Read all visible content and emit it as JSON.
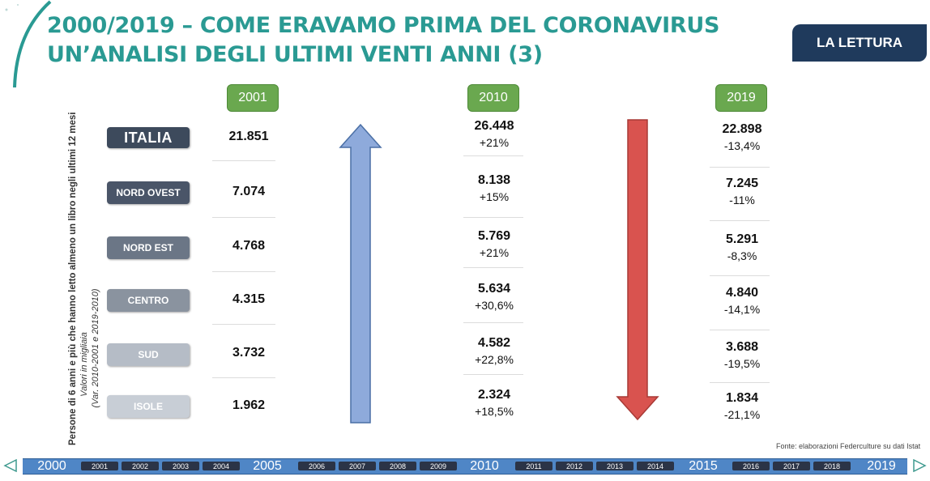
{
  "header": {
    "title_line1": "2000/2019 – COME ERAVAMO  PRIMA DEL CORONAVIRUS",
    "title_line2": "UN’ANALISI DEGLI ULTIMI VENTI ANNI (3)",
    "section_badge": "LA LETTURA"
  },
  "side_label": {
    "line1": "Persone di 6 anni e più che hanno letto almeno un libro negli ultimi 12 mesi",
    "line2": "Valori in  migliaia",
    "line3": "(Var. 2010-2001 e 2019-2010)"
  },
  "years": {
    "y2001": "2001",
    "y2010": "2010",
    "y2019": "2019"
  },
  "regions": [
    {
      "name": "ITALIA",
      "v2001": "21.851",
      "v2010": "26.448",
      "p2010": "+21%",
      "v2019": "22.898",
      "p2019": "-13,4%"
    },
    {
      "name": "NORD OVEST",
      "v2001": "7.074",
      "v2010": "8.138",
      "p2010": "+15%",
      "v2019": "7.245",
      "p2019": "-11%"
    },
    {
      "name": "NORD EST",
      "v2001": "4.768",
      "v2010": "5.769",
      "p2010": "+21%",
      "v2019": "5.291",
      "p2019": "-8,3%"
    },
    {
      "name": "CENTRO",
      "v2001": "4.315",
      "v2010": "5.634",
      "p2010": "+30,6%",
      "v2019": "4.840",
      "p2019": "-14,1%"
    },
    {
      "name": "SUD",
      "v2001": "3.732",
      "v2010": "4.582",
      "p2010": "+22,8%",
      "v2019": "3.688",
      "p2019": "-19,5%"
    },
    {
      "name": "ISOLE",
      "v2001": "1.962",
      "v2010": "2.324",
      "p2010": "+18,5%",
      "v2019": "1.834",
      "p2019": "-21,1%"
    }
  ],
  "colors": {
    "title": "#2a9a93",
    "year_badge": "#6aa84f",
    "arrow_up": "#8eaadb",
    "arrow_down": "#d9534f",
    "region_italia": "#3d4a5c",
    "region_nord_ovest": "#4a5568",
    "region_nord_est": "#6b7686",
    "region_centro": "#8a939f",
    "region_sud": "#b5bcc6",
    "region_isole": "#c8ced6",
    "timeline": "#4f86c6"
  },
  "source": "Fonte: elaborazioni Federculture su dati Istat",
  "timeline": {
    "major": [
      "2000",
      "2005",
      "2010",
      "2015",
      "2019"
    ],
    "minor": [
      "2001",
      "2002",
      "2003",
      "2004",
      "2006",
      "2007",
      "2008",
      "2009",
      "2011",
      "2012",
      "2013",
      "2014",
      "2016",
      "2017",
      "2018"
    ]
  }
}
